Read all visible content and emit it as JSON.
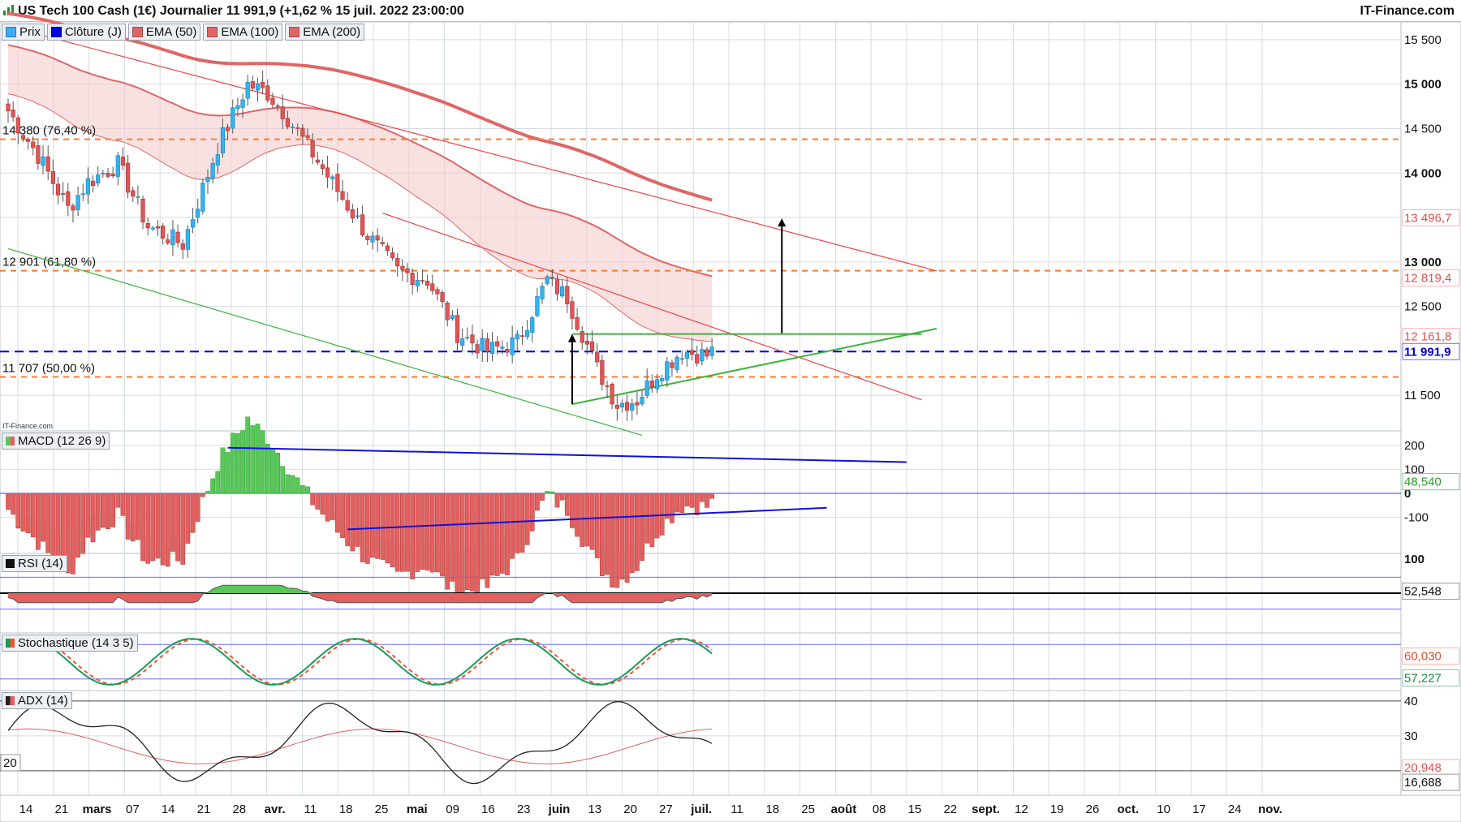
{
  "header": {
    "title": "US Tech 100 Cash (1€) Journalier 11 991,9 (+1,62 % 15 juil. 2022 23:00:00",
    "brand": "IT-Finance.com",
    "watermark": "IT-Finance.com"
  },
  "legend": [
    {
      "label": "Prix",
      "color": "#3fa9f5"
    },
    {
      "label": "Clôture (J)",
      "color": "#0000dd"
    },
    {
      "label": "EMA (50)",
      "color": "#e06666"
    },
    {
      "label": "EMA (100)",
      "color": "#e06666"
    },
    {
      "label": "EMA (200)",
      "color": "#e06666"
    }
  ],
  "colors": {
    "up": "#33b3f0",
    "down": "#e05555",
    "ema": "#e06666",
    "fibo": "#ff7a2a",
    "close_line": "#0000dd",
    "trend_red": "#ee4444",
    "trend_green": "#3cb43c",
    "macd_pos": "#58c858",
    "macd_neg": "#e46060",
    "rsi_pos": "#58c858",
    "rsi_neg": "#e46060",
    "stoch_k": "#1a9a5a",
    "stoch_d": "#ee5533",
    "adx": "#222222",
    "adx_sig": "#e06060",
    "grid": "#d6dbe3"
  },
  "chart_data": [
    {
      "type": "candlestick",
      "panel": "price",
      "ylim": [
        11100,
        15700
      ],
      "y_ticks": [
        11500,
        12000,
        12500,
        13000,
        13500,
        14000,
        14500,
        15000,
        15500
      ],
      "y_tick_labels": [
        "11 500",
        "12 000",
        "12 500",
        "13 000",
        "13 500",
        "14 000",
        "14 500",
        "15 000",
        "15 500"
      ],
      "x_tick_labels": [
        "14",
        "21",
        "mars",
        "07",
        "14",
        "21",
        "28",
        "avr.",
        "11",
        "18",
        "25",
        "mai",
        "09",
        "16",
        "23",
        "juin",
        "13",
        "20",
        "27",
        "juil.",
        "11",
        "18",
        "25",
        "août",
        "08",
        "15",
        "22",
        "sept.",
        "12",
        "19",
        "26",
        "oct.",
        "10",
        "17",
        "24",
        "nov."
      ],
      "bold_x_labels": [
        "mars",
        "avr.",
        "mai",
        "juin",
        "juil.",
        "août",
        "sept.",
        "oct.",
        "nov."
      ],
      "last_close": 11991.9,
      "last_close_label": "11 991,9",
      "fibo_levels": [
        {
          "value": 14380,
          "label": "14 380 (76,40 %)"
        },
        {
          "value": 12901,
          "label": "12 901 (61,80 %)"
        },
        {
          "value": 11707,
          "label": "11 707 (50,00 %)"
        }
      ],
      "right_labels": [
        {
          "value": 13496.7,
          "text": "13 496,7"
        },
        {
          "value": 12819.4,
          "text": "12 819,4"
        },
        {
          "value": 12161.8,
          "text": "12 161,8"
        }
      ]
    },
    {
      "type": "bar",
      "panel": "MACD",
      "name": "MACD (12 26 9)",
      "ylim": [
        -250,
        260
      ],
      "y_ticks": [
        200,
        100,
        0,
        -100
      ],
      "y_tick_labels": [
        "200",
        "100",
        "0",
        "-100"
      ],
      "value_label": "48,540"
    },
    {
      "type": "area",
      "panel": "RSI",
      "name": "RSI (14)",
      "y_tick_labels": [
        "100"
      ],
      "value_label": "52,548"
    },
    {
      "type": "line",
      "panel": "Stochastique",
      "name": "Stochastique (14 3 5)",
      "value_labels": [
        "60,030",
        "57,227"
      ]
    },
    {
      "type": "line",
      "panel": "ADX",
      "name": "ADX (14)",
      "y_ticks": [
        40,
        30,
        20
      ],
      "y_tick_labels": [
        "40",
        "30"
      ],
      "level_label": "20",
      "value_labels": [
        "20,948",
        "16,688"
      ]
    }
  ]
}
